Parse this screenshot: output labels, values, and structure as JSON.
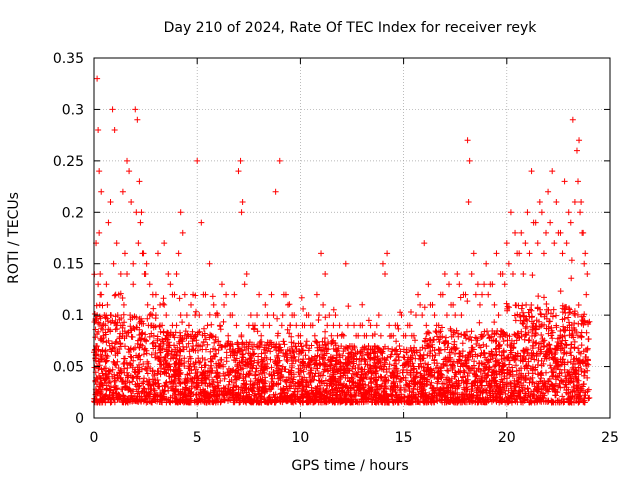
{
  "chart_data": {
    "type": "scatter",
    "title": "Day 210 of 2024, Rate Of TEC Index for receiver reyk",
    "xlabel": "GPS time / hours",
    "ylabel": "ROTI / TECUs",
    "xlim": [
      0,
      25
    ],
    "ylim": [
      0,
      0.35
    ],
    "xticks": [
      0,
      5,
      10,
      15,
      20,
      25
    ],
    "yticks": [
      0,
      0.05,
      0.1,
      0.15,
      0.2,
      0.25,
      0.3,
      0.35
    ],
    "xtick_labels": [
      "0",
      "5",
      "10",
      "15",
      "20",
      "25"
    ],
    "ytick_labels": [
      "0",
      "0.05",
      "0.1",
      "0.15",
      "0.2",
      "0.25",
      "0.3",
      "0.35"
    ],
    "grid": true,
    "marker": "+",
    "color": "#ff0000",
    "series": [
      {
        "name": "ROTI",
        "x": [
          0.1,
          0.15,
          0.2,
          0.25,
          0.3,
          0.35,
          0.4,
          0.5,
          0.6,
          0.7,
          0.8,
          0.9,
          1.0,
          1.1,
          1.2,
          1.3,
          1.4,
          1.5,
          1.6,
          1.7,
          1.8,
          1.9,
          2.0,
          2.1,
          2.2,
          2.3,
          2.4,
          2.5,
          2.6,
          2.7,
          2.8,
          2.9,
          3.0,
          3.1,
          3.2,
          3.3,
          3.4,
          3.5,
          3.6,
          3.7,
          3.8,
          3.9,
          4.0,
          4.1,
          4.2,
          4.3,
          4.4,
          4.5,
          4.6,
          4.7,
          4.8,
          4.9,
          5.0,
          5.2,
          5.4,
          5.6,
          5.8,
          6.0,
          6.2,
          6.4,
          6.6,
          6.8,
          7.0,
          7.1,
          7.2,
          7.4,
          7.6,
          7.8,
          8.0,
          8.2,
          8.4,
          8.6,
          8.8,
          9.0,
          9.2,
          9.4,
          9.6,
          9.8,
          10.0,
          10.2,
          10.4,
          10.6,
          10.8,
          11.0,
          11.2,
          11.4,
          11.6,
          11.8,
          12.0,
          12.2,
          12.4,
          12.6,
          12.8,
          13.0,
          13.2,
          13.4,
          13.6,
          13.8,
          14.0,
          14.2,
          14.4,
          14.6,
          14.8,
          15.0,
          15.2,
          15.4,
          15.6,
          15.8,
          16.0,
          16.2,
          16.4,
          16.6,
          16.8,
          17.0,
          17.2,
          17.4,
          17.6,
          17.8,
          18.0,
          18.1,
          18.2,
          18.4,
          18.6,
          18.8,
          19.0,
          19.2,
          19.4,
          19.6,
          19.8,
          20.0,
          20.2,
          20.4,
          20.6,
          20.8,
          21.0,
          21.2,
          21.4,
          21.6,
          21.8,
          22.0,
          22.2,
          22.4,
          22.6,
          22.8,
          23.0,
          23.2,
          23.4,
          23.5,
          23.6,
          23.7,
          23.8,
          23.9,
          0.25,
          0.3,
          0.2,
          0.28,
          0.15,
          0.35,
          0.45,
          0.55,
          0.65,
          0.8,
          0.95,
          1.05,
          1.15,
          1.3,
          1.45,
          1.6,
          1.75,
          1.9,
          2.05,
          2.15,
          2.25,
          2.35,
          2.45,
          2.55,
          2.7,
          2.85,
          3.0,
          3.2,
          3.4,
          3.6,
          3.8,
          4.0,
          4.2,
          4.4,
          4.6,
          4.8,
          5.1,
          5.3,
          5.5,
          5.7,
          5.9,
          6.1,
          6.3,
          6.5,
          6.7,
          6.9,
          7.15,
          7.3,
          7.5,
          7.7,
          7.9,
          8.1,
          8.3,
          8.5,
          8.7,
          8.9,
          9.1,
          9.3,
          9.5,
          9.7,
          9.9,
          10.1,
          10.3,
          10.5,
          10.7,
          10.9,
          11.1,
          11.3,
          11.5,
          11.7,
          11.9,
          12.1,
          12.3,
          12.5,
          12.7,
          12.9,
          13.1,
          13.3,
          13.5,
          13.7,
          13.9,
          14.1,
          14.3,
          14.5,
          14.7,
          14.9,
          15.1,
          15.3,
          15.5,
          15.7,
          15.9,
          16.1,
          16.3,
          16.5,
          16.7,
          16.9,
          17.1,
          17.3,
          17.5,
          17.7,
          17.9,
          18.15,
          18.3,
          18.5,
          18.7,
          18.9,
          19.1,
          19.3,
          19.5,
          19.7,
          19.9,
          20.1,
          20.3,
          20.5,
          20.7,
          20.9,
          21.1,
          21.3,
          21.5,
          21.7,
          21.9,
          22.1,
          22.3,
          22.5,
          22.7,
          22.9,
          23.1,
          23.3,
          23.45,
          23.55,
          23.65,
          23.75,
          23.85
        ],
        "y": [
          0.17,
          0.33,
          0.28,
          0.24,
          0.12,
          0.22,
          0.09,
          0.1,
          0.13,
          0.19,
          0.21,
          0.3,
          0.28,
          0.17,
          0.12,
          0.14,
          0.22,
          0.16,
          0.25,
          0.24,
          0.21,
          0.15,
          0.3,
          0.29,
          0.23,
          0.2,
          0.16,
          0.14,
          0.11,
          0.1,
          0.09,
          0.08,
          0.12,
          0.16,
          0.11,
          0.09,
          0.17,
          0.1,
          0.08,
          0.13,
          0.09,
          0.12,
          0.14,
          0.16,
          0.2,
          0.18,
          0.12,
          0.1,
          0.09,
          0.11,
          0.12,
          0.1,
          0.25,
          0.19,
          0.12,
          0.15,
          0.11,
          0.1,
          0.13,
          0.12,
          0.1,
          0.12,
          0.24,
          0.25,
          0.21,
          0.14,
          0.1,
          0.09,
          0.12,
          0.09,
          0.1,
          0.12,
          0.22,
          0.25,
          0.12,
          0.11,
          0.1,
          0.09,
          0.08,
          0.09,
          0.1,
          0.09,
          0.12,
          0.16,
          0.14,
          0.1,
          0.09,
          0.08,
          0.08,
          0.15,
          0.07,
          0.09,
          0.08,
          0.09,
          0.08,
          0.09,
          0.07,
          0.1,
          0.15,
          0.16,
          0.08,
          0.09,
          0.07,
          0.08,
          0.09,
          0.08,
          0.1,
          0.11,
          0.17,
          0.13,
          0.11,
          0.09,
          0.12,
          0.14,
          0.13,
          0.11,
          0.14,
          0.1,
          0.12,
          0.27,
          0.25,
          0.16,
          0.13,
          0.12,
          0.15,
          0.13,
          0.11,
          0.1,
          0.14,
          0.17,
          0.2,
          0.18,
          0.16,
          0.14,
          0.2,
          0.24,
          0.19,
          0.21,
          0.16,
          0.22,
          0.24,
          0.21,
          0.18,
          0.23,
          0.2,
          0.29,
          0.26,
          0.27,
          0.21,
          0.18,
          0.16,
          0.14,
          0.18,
          0.14,
          0.13,
          0.11,
          0.1,
          0.12,
          0.08,
          0.09,
          0.11,
          0.1,
          0.15,
          0.12,
          0.1,
          0.09,
          0.11,
          0.14,
          0.1,
          0.13,
          0.2,
          0.17,
          0.19,
          0.16,
          0.14,
          0.15,
          0.13,
          0.12,
          0.1,
          0.09,
          0.11,
          0.14,
          0.12,
          0.09,
          0.1,
          0.08,
          0.09,
          0.07,
          0.1,
          0.12,
          0.09,
          0.08,
          0.1,
          0.09,
          0.11,
          0.08,
          0.1,
          0.09,
          0.2,
          0.13,
          0.09,
          0.09,
          0.1,
          0.08,
          0.11,
          0.09,
          0.1,
          0.08,
          0.09,
          0.12,
          0.09,
          0.1,
          0.08,
          0.09,
          0.1,
          0.09,
          0.08,
          0.1,
          0.11,
          0.09,
          0.08,
          0.1,
          0.09,
          0.08,
          0.09,
          0.07,
          0.08,
          0.09,
          0.08,
          0.07,
          0.08,
          0.09,
          0.08,
          0.14,
          0.09,
          0.08,
          0.09,
          0.1,
          0.08,
          0.09,
          0.08,
          0.12,
          0.1,
          0.09,
          0.11,
          0.1,
          0.09,
          0.12,
          0.1,
          0.11,
          0.1,
          0.13,
          0.12,
          0.21,
          0.14,
          0.12,
          0.11,
          0.13,
          0.12,
          0.13,
          0.16,
          0.14,
          0.13,
          0.15,
          0.14,
          0.16,
          0.18,
          0.17,
          0.16,
          0.19,
          0.17,
          0.2,
          0.18,
          0.19,
          0.17,
          0.18,
          0.16,
          0.17,
          0.19,
          0.21,
          0.23,
          0.2,
          0.18,
          0.15,
          0.12
        ]
      }
    ]
  }
}
